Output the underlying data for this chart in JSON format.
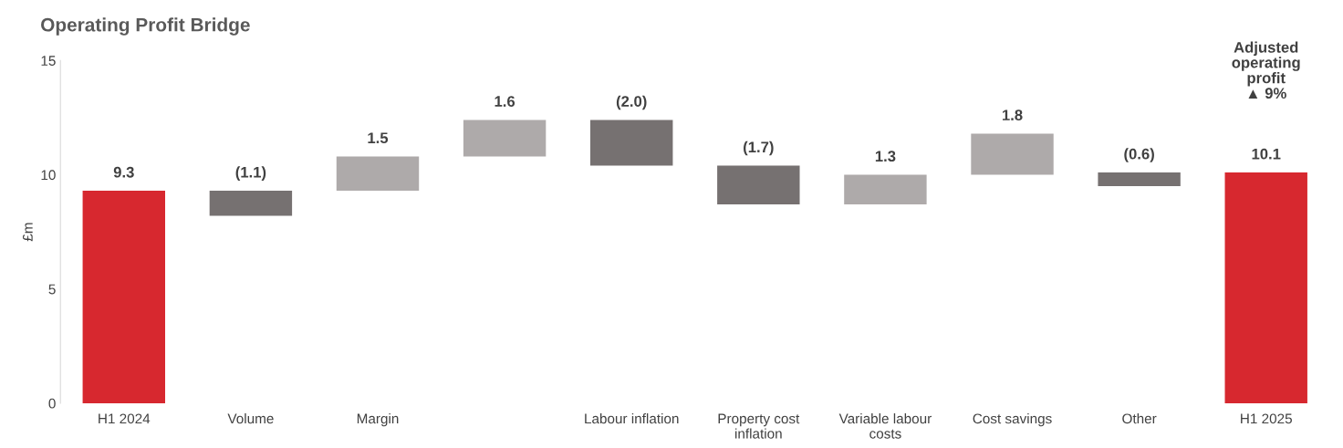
{
  "chart_data": {
    "type": "bar",
    "title": "Operating Profit Bridge",
    "ylabel": "£m",
    "categories": [
      "H1 2024",
      "Volume",
      "Margin",
      null,
      "Labour inflation",
      "Property cost\ninflation",
      "Variable labour\ncosts",
      "Cost savings",
      "Other",
      "H1 2025"
    ],
    "values": [
      9.3,
      -1.1,
      1.5,
      1.6,
      -2.0,
      -1.7,
      1.3,
      1.8,
      -0.6,
      10.1
    ],
    "base": [
      0,
      9.3,
      9.3,
      10.8,
      12.4,
      10.4,
      8.7,
      10.0,
      10.1,
      0
    ],
    "colors": [
      "#d7282f",
      "#767171",
      "#aeaaaa",
      "#aeaaaa",
      "#767171",
      "#767171",
      "#aeaaaa",
      "#aeaaaa",
      "#767171",
      "#d7282f"
    ],
    "value_labels": [
      "9.3",
      "(1.1)",
      "1.5",
      "1.6",
      "(2.0)",
      "(1.7)",
      "1.3",
      "1.8",
      "(0.6)",
      "10.1"
    ],
    "ylim": [
      0,
      15
    ],
    "yticks": [
      0,
      5,
      10,
      15
    ],
    "grid": false,
    "legend": false,
    "annotations": [
      "Adjusted\noperating\nprofit\n▲ 9%"
    ]
  }
}
